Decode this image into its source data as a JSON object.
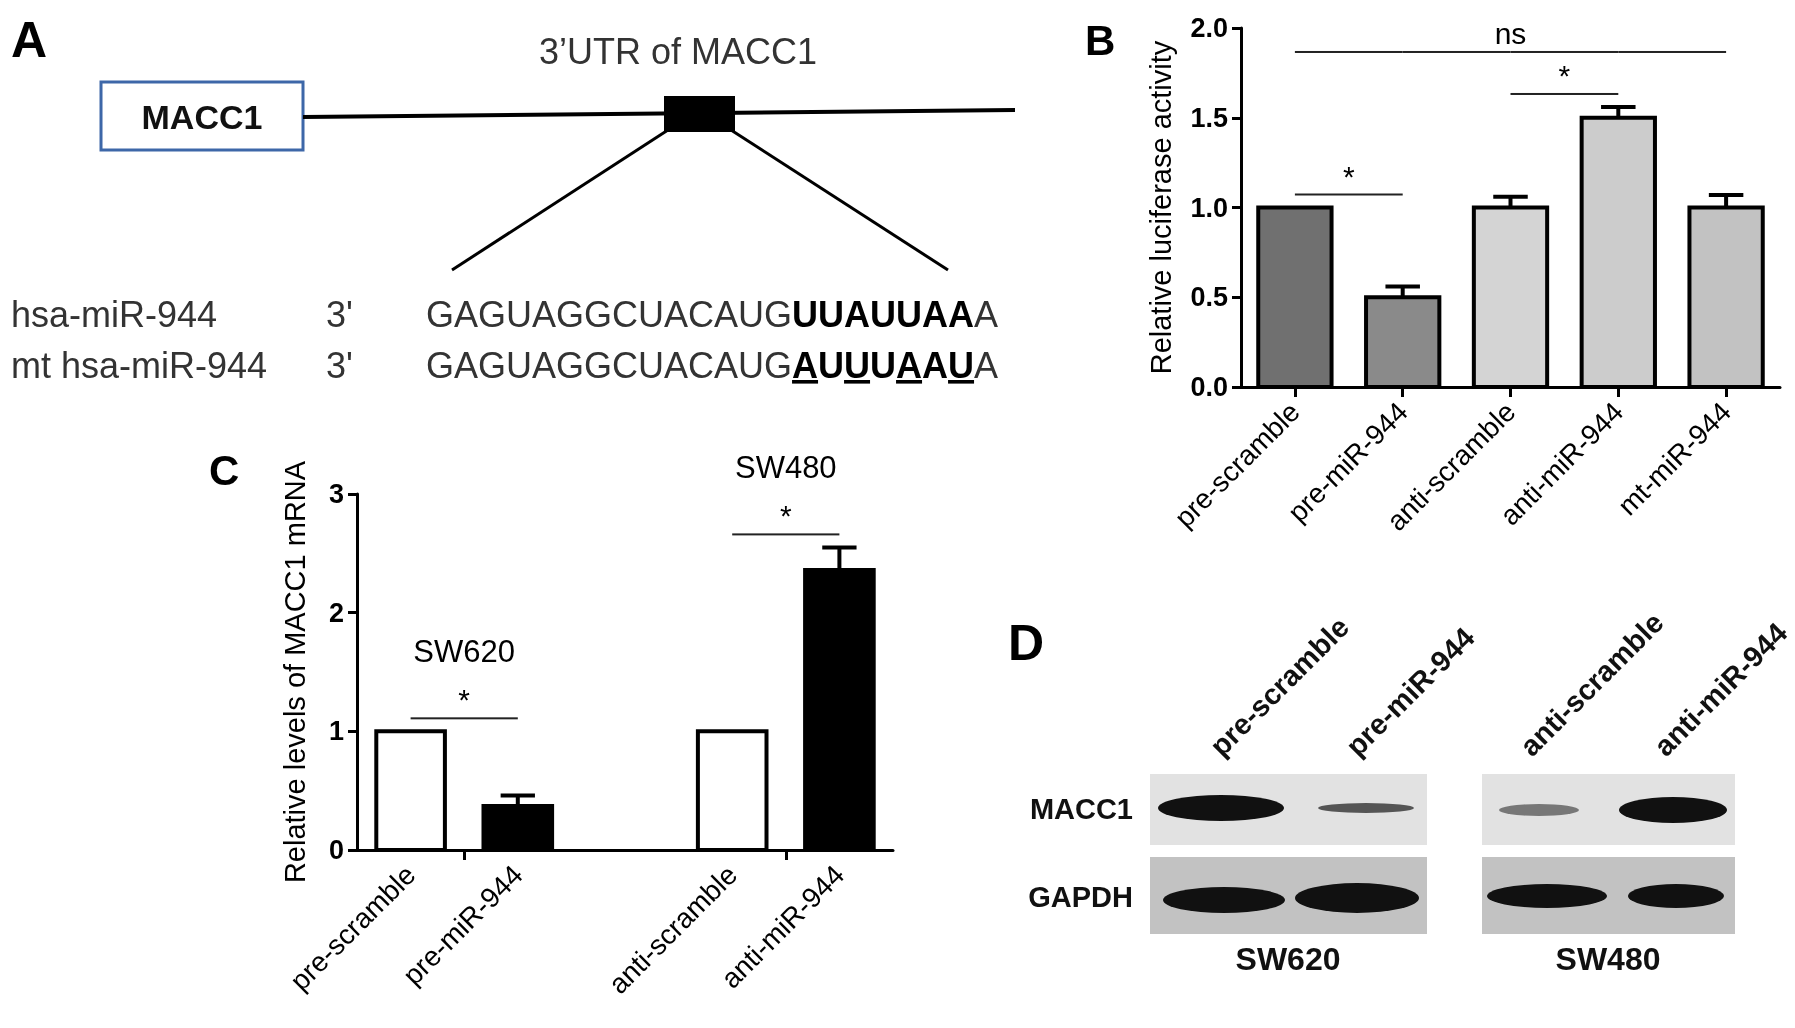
{
  "chart_data": [
    {
      "type": "other",
      "title": "3’UTR of MACC1",
      "annotations": [
        "A",
        "MACC1",
        "hsa-miR-944",
        "3'",
        "GAGUAGGCUACAUGUUAUUAAA",
        "mt hsa-miR-944",
        "3'",
        "GAGUAGGCUACAUGAUUUAAUA"
      ]
    },
    {
      "type": "bar",
      "ylabel": "Relative luciferase activity",
      "categories": [
        "pre-scramble",
        "pre-miR-944",
        "anti-scramble",
        "anti-miR-944",
        "mt-miR-944"
      ],
      "values": [
        1.0,
        0.5,
        1.0,
        1.5,
        1.0
      ],
      "errors": [
        null,
        [
          0.5,
          0.56
        ],
        [
          1.0,
          1.06
        ],
        [
          1.5,
          1.56
        ],
        [
          1.0,
          1.07
        ]
      ],
      "colors": [
        "#707070",
        "#8a8a8a",
        "#d4d4d4",
        "#cccccc",
        "#c2c2c2"
      ],
      "ylim": [
        0,
        2
      ],
      "yticks": [
        {
          "value": 0,
          "label": "0.0"
        },
        0.5,
        {
          "value": 1,
          "label": "1.0"
        },
        1.5,
        {
          "value": 2,
          "label": "2.0"
        }
      ],
      "annotations": [
        "B",
        "*",
        "*",
        "ns"
      ]
    },
    {
      "type": "bar",
      "ylabel": "Relative levels of MACC1 mRNA",
      "categories": [
        "pre-scramble",
        "pre-miR-944",
        null,
        "anti-scramble",
        "anti-miR-944"
      ],
      "values": [
        1,
        0.37,
        null,
        1,
        2.36
      ],
      "errors": [
        null,
        [
          0.37,
          0.46
        ],
        null,
        null,
        [
          2.36,
          2.55
        ]
      ],
      "colors": [
        "#ffffff",
        "#000000",
        null,
        "#ffffff",
        "#000000"
      ],
      "ylim": [
        0,
        3
      ],
      "yticks": [
        0,
        1,
        2,
        3
      ],
      "annotations": [
        "C",
        "SW620",
        "*",
        "SW480",
        "*"
      ]
    },
    {
      "type": "other",
      "annotations": [
        "D",
        "pre-scramble",
        "pre-miR-944",
        "anti-scramble",
        "anti-miR-944",
        "MACC1",
        "GAPDH",
        "SW620",
        "SW480"
      ]
    }
  ]
}
